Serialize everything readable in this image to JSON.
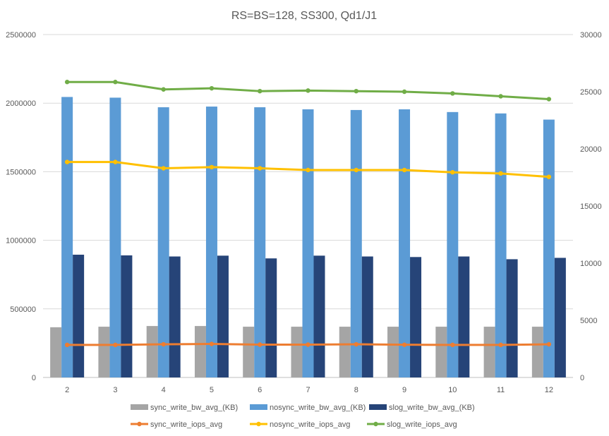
{
  "chart_data": {
    "type": "bar",
    "title": "RS=BS=128, SS300, Qd1/J1",
    "categories": [
      "2",
      "3",
      "4",
      "5",
      "6",
      "7",
      "8",
      "9",
      "10",
      "11",
      "12"
    ],
    "y_left": {
      "min": 0,
      "max": 2500000,
      "ticks": [
        "0",
        "500000",
        "1000000",
        "1500000",
        "2000000",
        "2500000"
      ]
    },
    "y_right": {
      "min": 0,
      "max": 30000,
      "ticks": [
        "0",
        "5000",
        "10000",
        "15000",
        "20000",
        "25000",
        "30000"
      ]
    },
    "grid": true,
    "legend_position": "bottom",
    "series": [
      {
        "name": "sync_write_bw_avg_(KB)",
        "type": "bar",
        "axis": "left",
        "color": "#a5a5a5",
        "values": [
          366000,
          370000,
          375000,
          375000,
          370000,
          370000,
          370000,
          370000,
          370000,
          370000,
          370000
        ]
      },
      {
        "name": "nosync_write_bw_avg_(KB)",
        "type": "bar",
        "axis": "left",
        "color": "#5b9bd5",
        "values": [
          2045000,
          2040000,
          1970000,
          1975000,
          1970000,
          1955000,
          1950000,
          1955000,
          1935000,
          1925000,
          1880000
        ]
      },
      {
        "name": "slog_write_bw_avg_(KB)",
        "type": "bar",
        "axis": "left",
        "color": "#264478",
        "values": [
          895000,
          890000,
          882000,
          888000,
          868000,
          888000,
          882000,
          878000,
          882000,
          862000,
          872000
        ]
      },
      {
        "name": "sync_write_iops_avg",
        "type": "line",
        "axis": "right",
        "color": "#ed7d31",
        "values": [
          2850,
          2850,
          2900,
          2930,
          2870,
          2870,
          2900,
          2860,
          2850,
          2850,
          2900
        ]
      },
      {
        "name": "nosync_write_iops_avg",
        "type": "line",
        "axis": "right",
        "color": "#ffc000",
        "values": [
          18850,
          18850,
          18300,
          18400,
          18300,
          18150,
          18150,
          18150,
          17950,
          17850,
          17550
        ]
      },
      {
        "name": "slog_write_iops_avg",
        "type": "line",
        "axis": "right",
        "color": "#70ad47",
        "values": [
          25850,
          25850,
          25200,
          25300,
          25050,
          25100,
          25050,
          25000,
          24850,
          24600,
          24350
        ]
      }
    ]
  }
}
